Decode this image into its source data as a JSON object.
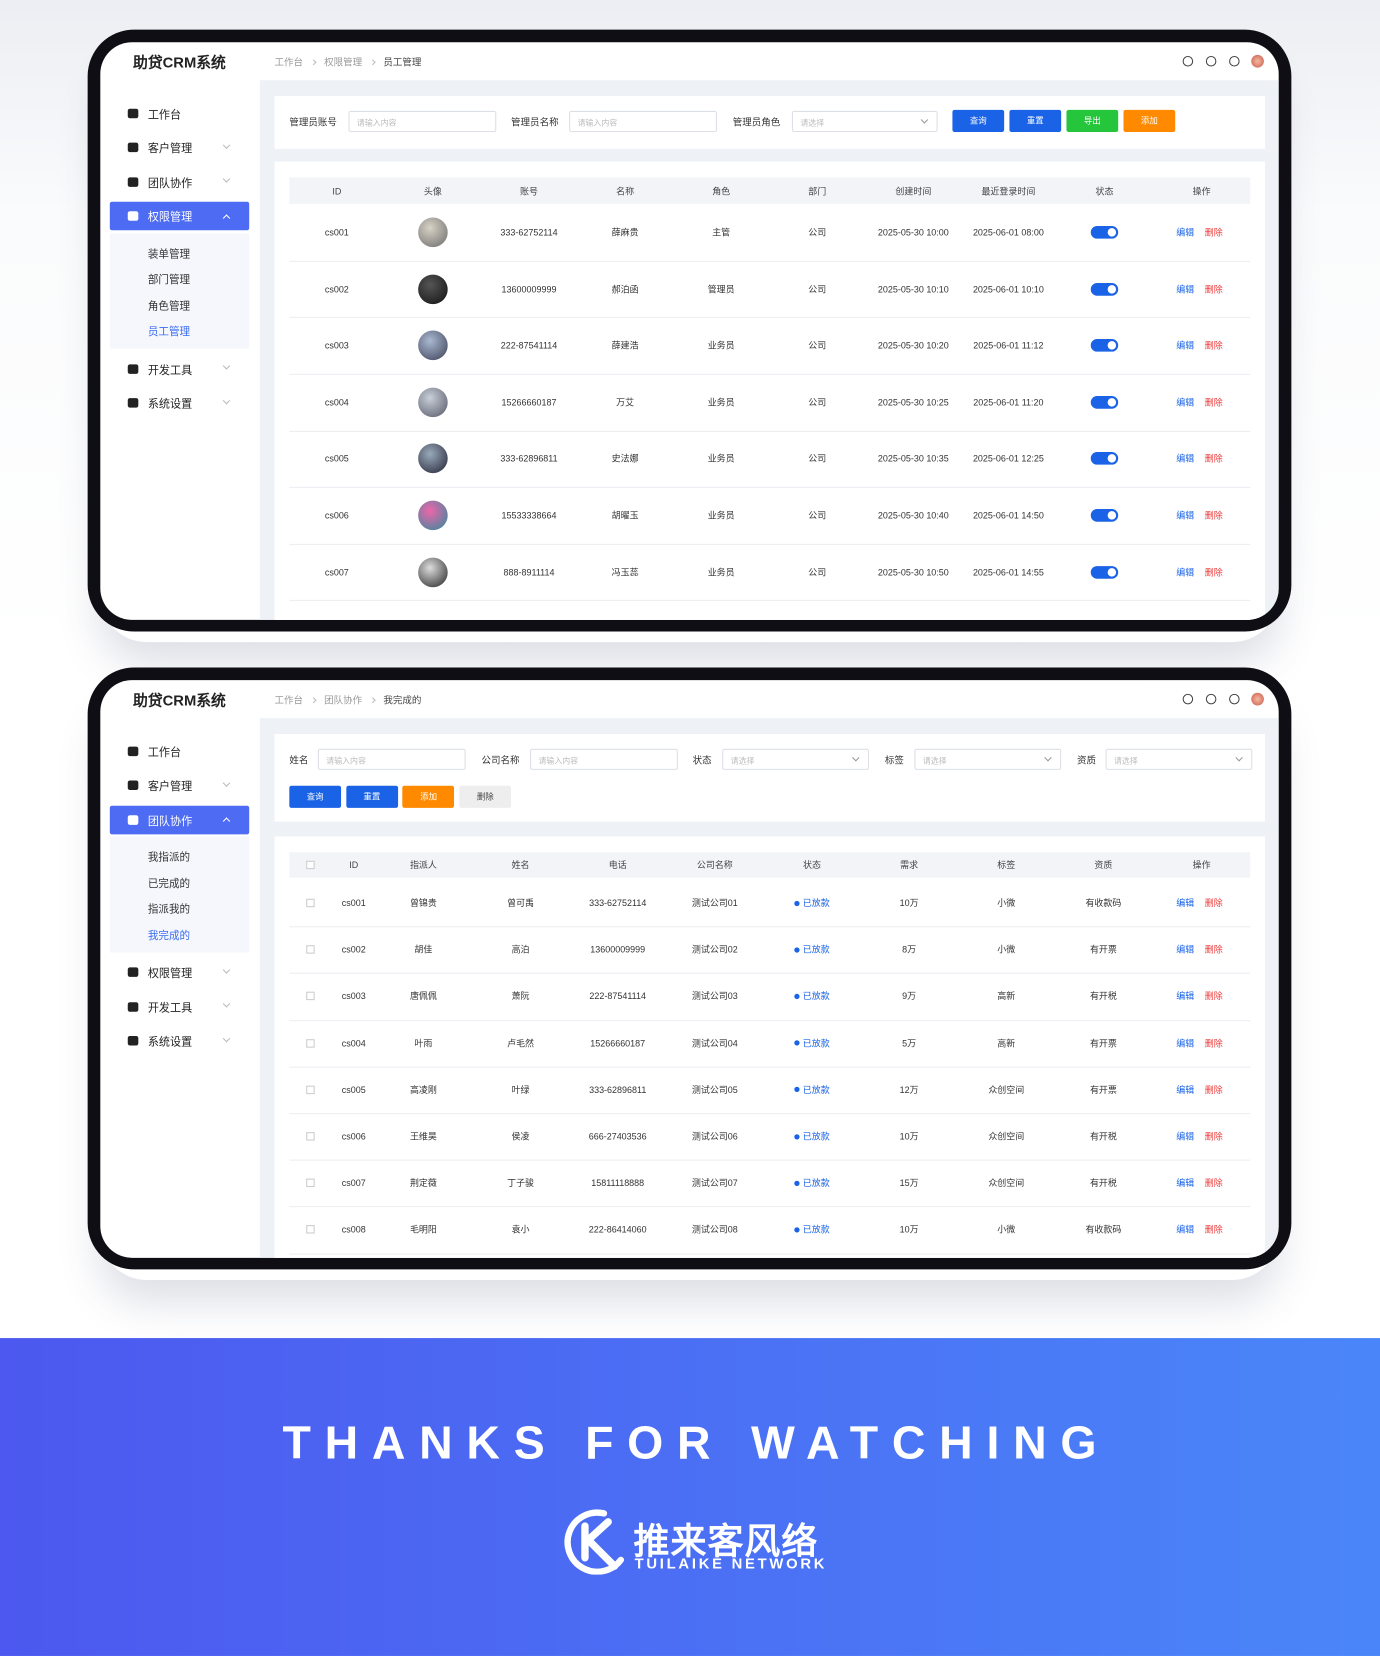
{
  "screens": [
    {
      "brand": "助贷CRM系统",
      "breadcrumb": [
        "工作台",
        "权限管理",
        "员工管理"
      ],
      "menu": [
        {
          "label": "工作台"
        },
        {
          "label": "客户管理"
        },
        {
          "label": "团队协作"
        },
        {
          "label": "权限管理",
          "children": [
            "装单管理",
            "部门管理",
            "角色管理",
            "员工管理"
          ]
        },
        {
          "label": "开发工具"
        },
        {
          "label": "系统设置"
        }
      ],
      "filters": [
        {
          "label": "管理员账号",
          "placeholder": "请输入内容"
        },
        {
          "label": "管理员名称",
          "placeholder": "请输入内容"
        },
        {
          "label": "管理员角色",
          "placeholder": "请选择"
        }
      ],
      "buttons": [
        "查询",
        "重置",
        "导出",
        "添加"
      ],
      "table": {
        "headers": [
          "ID",
          "头像",
          "账号",
          "名称",
          "角色",
          "部门",
          "创建时间",
          "最近登录时间",
          "状态",
          "操作"
        ],
        "actions": [
          "编辑",
          "删除"
        ],
        "rows": [
          [
            "cs001",
            "333-62752114",
            "薛麻贵",
            "主管",
            "公司",
            "2025-05-30 10:00",
            "2025-06-01 08:00"
          ],
          [
            "cs002",
            "13600009999",
            "郝泊函",
            "管理员",
            "公司",
            "2025-05-30 10:10",
            "2025-06-01 10:10"
          ],
          [
            "cs003",
            "222-87541114",
            "薛建浩",
            "业务员",
            "公司",
            "2025-05-30 10:20",
            "2025-06-01 11:12"
          ],
          [
            "cs004",
            "15266660187",
            "万艾",
            "业务员",
            "公司",
            "2025-05-30 10:25",
            "2025-06-01 11:20"
          ],
          [
            "cs005",
            "333-62896811",
            "史法娜",
            "业务员",
            "公司",
            "2025-05-30 10:35",
            "2025-06-01 12:25"
          ],
          [
            "cs006",
            "15533338664",
            "胡曜玉",
            "业务员",
            "公司",
            "2025-05-30 10:40",
            "2025-06-01 14:50"
          ],
          [
            "cs007",
            "888-8911114",
            "冯玉蕊",
            "业务员",
            "公司",
            "2025-05-30 10:50",
            "2025-06-01 14:55"
          ]
        ]
      }
    },
    {
      "brand": "助贷CRM系统",
      "breadcrumb": [
        "工作台",
        "团队协作",
        "我完成的"
      ],
      "menu": [
        {
          "label": "工作台"
        },
        {
          "label": "客户管理"
        },
        {
          "label": "团队协作",
          "children": [
            "我指派的",
            "已完成的",
            "指派我的",
            "我完成的"
          ]
        },
        {
          "label": "权限管理"
        },
        {
          "label": "开发工具"
        },
        {
          "label": "系统设置"
        }
      ],
      "filters": [
        {
          "label": "姓名",
          "placeholder": "请输入内容"
        },
        {
          "label": "公司名称",
          "placeholder": "请输入内容"
        },
        {
          "label": "状态",
          "placeholder": "请选择"
        },
        {
          "label": "标签",
          "placeholder": "请选择"
        },
        {
          "label": "资质",
          "placeholder": "请选择"
        }
      ],
      "buttons": [
        "查询",
        "重置",
        "添加",
        "删除"
      ],
      "table": {
        "headers": [
          "ID",
          "指派人",
          "姓名",
          "电话",
          "公司名称",
          "状态",
          "需求",
          "标签",
          "资质",
          "操作"
        ],
        "actions": [
          "编辑",
          "删除"
        ],
        "rows": [
          [
            "cs001",
            "曾锦贵",
            "曾可禹",
            "333-62752114",
            "测试公司01",
            "已放款",
            "10万",
            "小微",
            "有收款码"
          ],
          [
            "cs002",
            "胡佳",
            "高泊",
            "13600009999",
            "测试公司02",
            "已放款",
            "8万",
            "小微",
            "有开票"
          ],
          [
            "cs003",
            "唐佩佩",
            "萧阮",
            "222-87541114",
            "测试公司03",
            "已放款",
            "9万",
            "高新",
            "有开税"
          ],
          [
            "cs004",
            "叶雨",
            "卢毛然",
            "15266660187",
            "测试公司04",
            "已放款",
            "5万",
            "高新",
            "有开票"
          ],
          [
            "cs005",
            "高凌刚",
            "叶绿",
            "333-62896811",
            "测试公司05",
            "已放款",
            "12万",
            "众创空间",
            "有开票"
          ],
          [
            "cs006",
            "王维昊",
            "侯凌",
            "666-27403536",
            "测试公司06",
            "已放款",
            "10万",
            "众创空间",
            "有开税"
          ],
          [
            "cs007",
            "荆定薇",
            "丁子骏",
            "15811118888",
            "测试公司07",
            "已放款",
            "15万",
            "众创空间",
            "有开税"
          ],
          [
            "cs008",
            "毛明阳",
            "袁小",
            "222-86414060",
            "测试公司08",
            "已放款",
            "10万",
            "小微",
            "有收款码"
          ]
        ]
      }
    }
  ],
  "footer": {
    "title": "THANKS FOR WATCHING",
    "logo_name": "推来客风络",
    "logo_sub": "TUILAIKE NETWORK"
  }
}
